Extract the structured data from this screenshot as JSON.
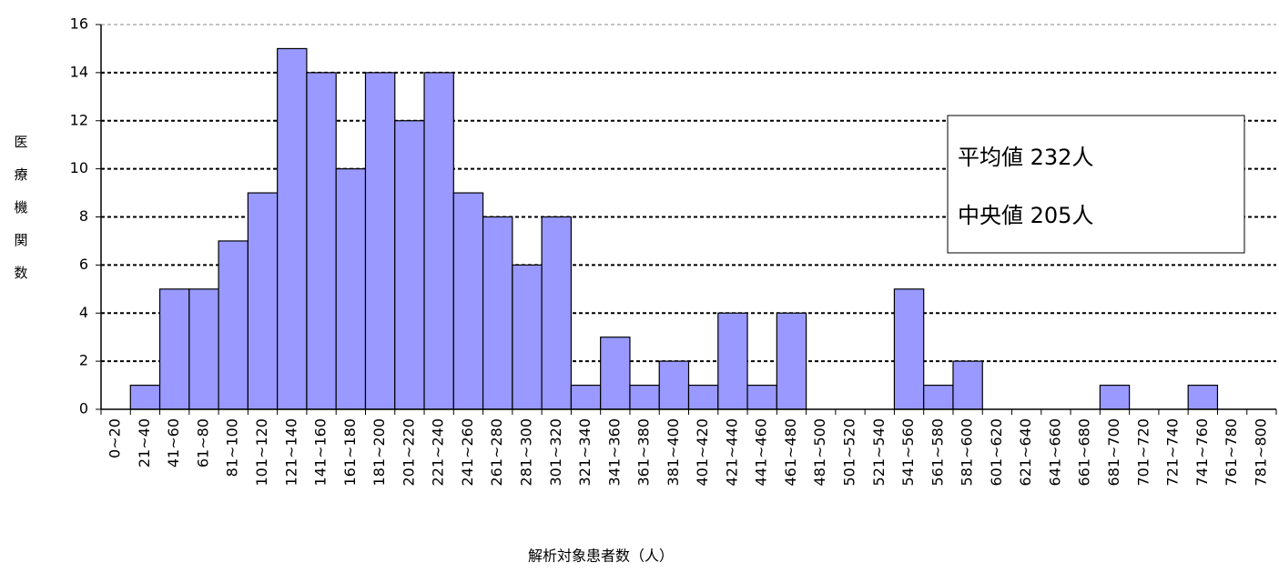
{
  "chart_data": {
    "type": "bar",
    "y_label": "医療機関数",
    "x_label": "解析対象患者数（人）",
    "annotations": [
      "平均値 232人",
      "中央値 205人"
    ],
    "categories": [
      "0~20",
      "21~40",
      "41~60",
      "61~80",
      "81~100",
      "101~120",
      "121~140",
      "141~160",
      "161~180",
      "181~200",
      "201~220",
      "221~240",
      "241~260",
      "261~280",
      "281~300",
      "301~320",
      "321~340",
      "341~360",
      "361~380",
      "381~400",
      "401~420",
      "421~440",
      "441~460",
      "461~480",
      "481~500",
      "501~520",
      "521~540",
      "541~560",
      "561~580",
      "581~600",
      "601~620",
      "621~640",
      "641~660",
      "661~680",
      "681~700",
      "701~720",
      "721~740",
      "741~760",
      "761~780",
      "781~800"
    ],
    "values": [
      0,
      1,
      5,
      5,
      7,
      9,
      15,
      14,
      10,
      14,
      12,
      14,
      9,
      8,
      6,
      8,
      1,
      3,
      1,
      2,
      1,
      4,
      1,
      4,
      0,
      0,
      0,
      5,
      1,
      2,
      0,
      0,
      0,
      0,
      1,
      0,
      0,
      1,
      0,
      0
    ],
    "color": "#9999ff",
    "ylim": [
      0,
      16
    ],
    "yticks": [
      0,
      2,
      4,
      6,
      8,
      10,
      12,
      14,
      16
    ],
    "grid": true
  }
}
